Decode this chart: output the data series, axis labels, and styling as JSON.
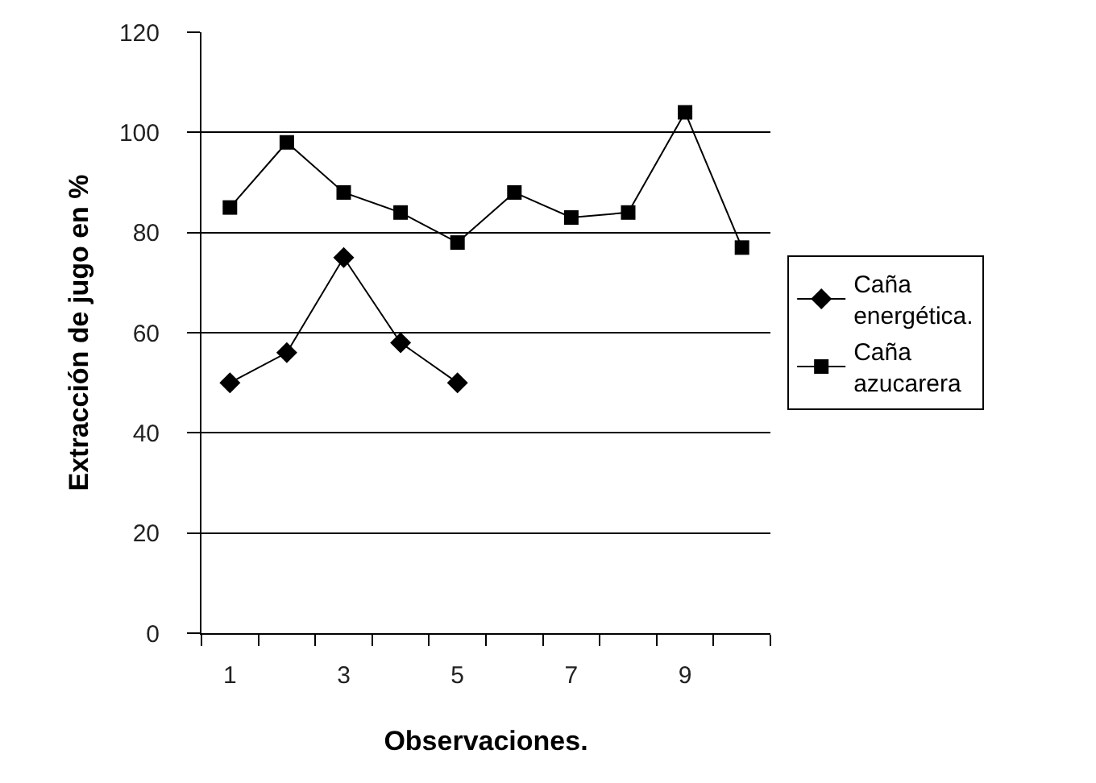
{
  "chart_data": {
    "type": "line",
    "xlabel": "Observaciones.",
    "ylabel": "Extracción de jugo en %",
    "categories": [
      "1",
      null,
      "3",
      null,
      "5",
      null,
      "7",
      null,
      "9",
      null
    ],
    "ylim": [
      0,
      120
    ],
    "yticks": [
      0,
      20,
      40,
      60,
      80,
      100,
      120
    ],
    "grid": "y",
    "legend": "right",
    "line_style": "solid",
    "series": [
      {
        "name": "Caña energética.",
        "color": "#000000",
        "marker": "diamond",
        "values": [
          50,
          56,
          75,
          58,
          50,
          null,
          null,
          null,
          null,
          null
        ]
      },
      {
        "name": "Caña azucarera",
        "color": "#000000",
        "marker": "square",
        "values": [
          85,
          98,
          88,
          84,
          78,
          88,
          83,
          84,
          104,
          77
        ]
      }
    ]
  }
}
